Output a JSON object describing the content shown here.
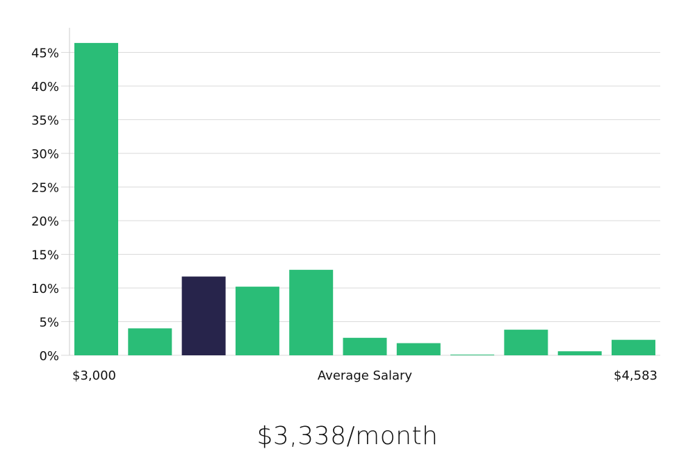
{
  "chart_data": {
    "type": "bar",
    "title": "",
    "xlabel": "Average Salary",
    "ylabel": "",
    "x_min_label": "$3,000",
    "x_max_label": "$4,583",
    "ylim": [
      0,
      48
    ],
    "yticks": [
      0,
      5,
      10,
      15,
      20,
      25,
      30,
      35,
      40,
      45
    ],
    "ytick_labels": [
      "0%",
      "5%",
      "10%",
      "15%",
      "20%",
      "25%",
      "30%",
      "35%",
      "40%",
      "45%"
    ],
    "values": [
      46.4,
      4.0,
      11.7,
      10.2,
      12.7,
      2.6,
      1.8,
      0.1,
      3.8,
      0.6,
      2.3
    ],
    "highlight_index": 2,
    "grid": true,
    "colors": {
      "bar": "#2ABD77",
      "highlight": "#27244B",
      "grid": "#DADADA",
      "axis": "#CCCCCC"
    }
  },
  "headline": "$3,338/month"
}
